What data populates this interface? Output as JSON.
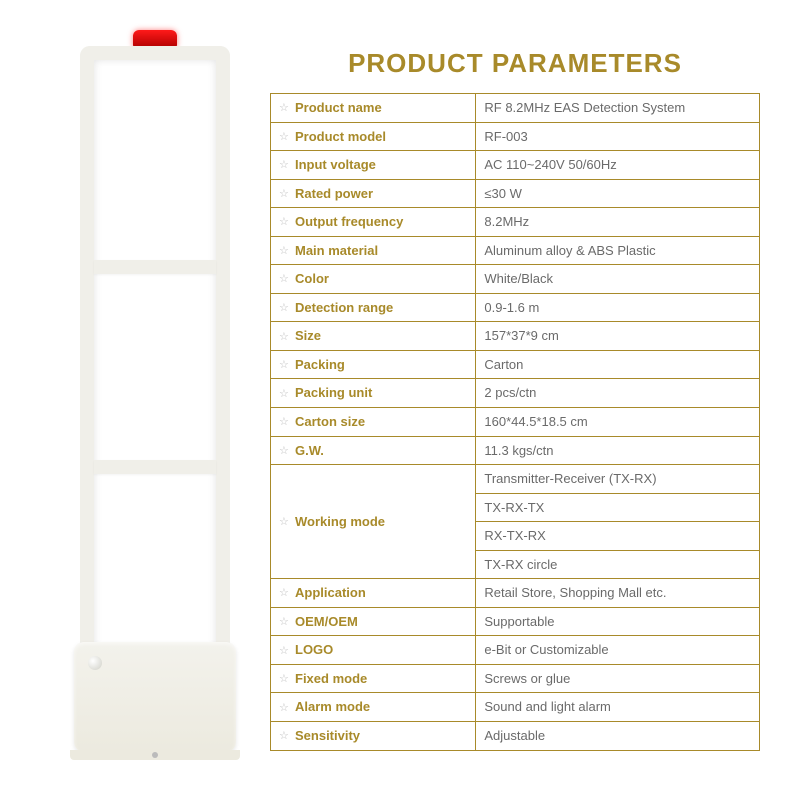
{
  "title": "PRODUCT PARAMETERS",
  "colors": {
    "accent": "#a88a2a",
    "border": "#a88a2a",
    "value_text": "#6a6a6a",
    "star": "#bdbdbd",
    "background": "#ffffff",
    "alarm_light": "#ff1a1a",
    "antenna_body": "#f0efe9"
  },
  "typography": {
    "title_fontsize": 26,
    "cell_fontsize": 13,
    "font_family": "Arial"
  },
  "table": {
    "label_width_pct": 42,
    "rows": [
      {
        "label": "Product name",
        "values": [
          "RF 8.2MHz EAS Detection System"
        ]
      },
      {
        "label": "Product model",
        "values": [
          "RF-003"
        ]
      },
      {
        "label": "Input voltage",
        "values": [
          "AC 110~240V 50/60Hz"
        ]
      },
      {
        "label": "Rated power",
        "values": [
          "≤30 W"
        ]
      },
      {
        "label": "Output frequency",
        "values": [
          "8.2MHz"
        ]
      },
      {
        "label": "Main material",
        "values": [
          "Aluminum alloy & ABS Plastic"
        ]
      },
      {
        "label": "Color",
        "values": [
          "White/Black"
        ]
      },
      {
        "label": "Detection range",
        "values": [
          "0.9-1.6 m"
        ]
      },
      {
        "label": "Size",
        "values": [
          "157*37*9 cm"
        ]
      },
      {
        "label": "Packing",
        "values": [
          "Carton"
        ]
      },
      {
        "label": "Packing unit",
        "values": [
          "2 pcs/ctn"
        ]
      },
      {
        "label": "Carton size",
        "values": [
          "160*44.5*18.5 cm"
        ]
      },
      {
        "label": "G.W.",
        "values": [
          "11.3 kgs/ctn"
        ]
      },
      {
        "label": "Working mode",
        "values": [
          "Transmitter-Receiver (TX-RX)",
          "TX-RX-TX",
          "RX-TX-RX",
          "TX-RX circle"
        ]
      },
      {
        "label": "Application",
        "values": [
          "Retail Store, Shopping Mall etc."
        ]
      },
      {
        "label": "OEM/OEM",
        "values": [
          "Supportable"
        ]
      },
      {
        "label": "LOGO",
        "values": [
          "e-Bit or Customizable"
        ]
      },
      {
        "label": "Fixed mode",
        "values": [
          "Screws or glue"
        ]
      },
      {
        "label": "Alarm mode",
        "values": [
          "Sound and light alarm"
        ]
      },
      {
        "label": "Sensitivity",
        "values": [
          "Adjustable"
        ]
      }
    ]
  }
}
